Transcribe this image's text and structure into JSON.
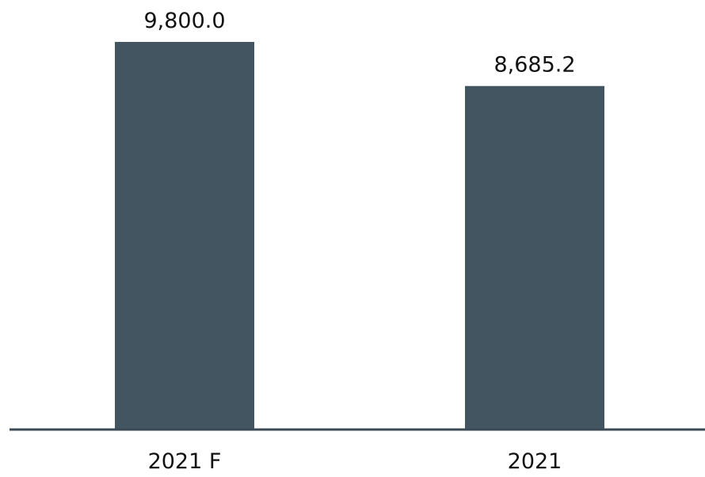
{
  "chart_data": {
    "type": "bar",
    "categories": [
      "2021 F",
      "2021"
    ],
    "values": [
      9800.0,
      8685.2
    ],
    "data_labels": [
      "9,800.0",
      "8,685.2"
    ],
    "ylim": [
      0,
      10000
    ],
    "grid": false,
    "legend": "none",
    "colors": {
      "bar": "#435561",
      "axis": "#3b4a55",
      "text": "#111111"
    }
  }
}
